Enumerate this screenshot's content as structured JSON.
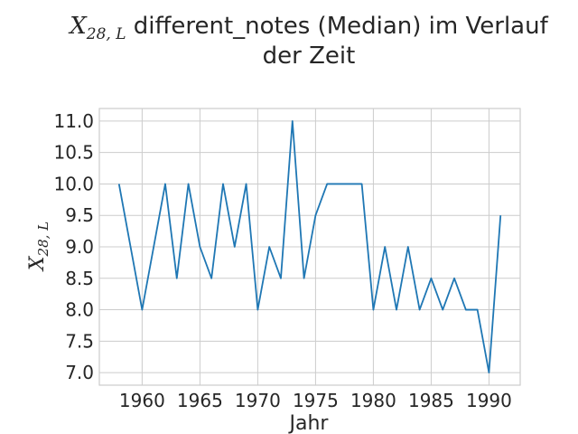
{
  "chart_data": {
    "type": "line",
    "title_line1": "X",
    "title_line1_sub": "28, L",
    "title_line1_rest": " different_notes (Median) im Verlauf",
    "title_line2": "der Zeit",
    "xlabel": "Jahr",
    "ylabel": "X",
    "ylabel_sub": "28, L",
    "xlim": [
      1956.3,
      1992.7
    ],
    "ylim": [
      6.8,
      11.2
    ],
    "x_ticks": [
      1960,
      1965,
      1970,
      1975,
      1980,
      1985,
      1990
    ],
    "y_ticks": [
      7.0,
      7.5,
      8.0,
      8.5,
      9.0,
      9.5,
      10.0,
      10.5,
      11.0
    ],
    "x_tick_labels": [
      "1960",
      "1965",
      "1970",
      "1975",
      "1980",
      "1985",
      "1990"
    ],
    "y_tick_labels": [
      "7.0",
      "7.5",
      "8.0",
      "8.5",
      "9.0",
      "9.5",
      "10.0",
      "10.5",
      "11.0"
    ],
    "grid": true,
    "series": [
      {
        "color": "#1f77b4",
        "x": [
          1958,
          1959,
          1960,
          1961,
          1962,
          1963,
          1964,
          1965,
          1966,
          1967,
          1968,
          1969,
          1970,
          1971,
          1972,
          1973,
          1974,
          1975,
          1976,
          1977,
          1978,
          1979,
          1980,
          1981,
          1982,
          1983,
          1984,
          1985,
          1986,
          1987,
          1988,
          1989,
          1990,
          1991
        ],
        "y": [
          10.0,
          9.0,
          8.0,
          9.0,
          10.0,
          8.5,
          10.0,
          9.0,
          8.5,
          10.0,
          9.0,
          10.0,
          8.0,
          9.0,
          8.5,
          11.0,
          8.5,
          9.5,
          10.0,
          10.0,
          10.0,
          10.0,
          8.0,
          9.0,
          8.0,
          9.0,
          8.0,
          8.5,
          8.0,
          8.5,
          8.0,
          8.0,
          7.0,
          9.5
        ]
      }
    ]
  }
}
